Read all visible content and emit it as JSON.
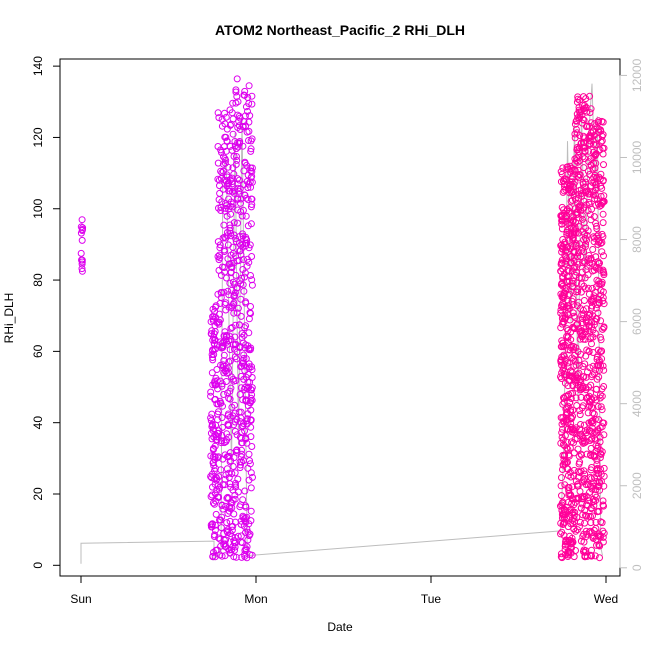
{
  "chart_data": {
    "type": "scatter",
    "title": "ATOM2 Northeast_Pacific_2 RHi_DLH",
    "xlabel": "Date",
    "ylabel": "RHi_DLH",
    "x_tick_labels": [
      "Sun",
      "Mon",
      "Tue",
      "Wed"
    ],
    "x_tick_days": [
      0,
      1,
      2,
      3
    ],
    "xlim_days": [
      -0.12,
      3.08
    ],
    "ylim": [
      -3,
      142
    ],
    "y_ticks": [
      0,
      20,
      40,
      60,
      80,
      100,
      120,
      140
    ],
    "y2_ticks": [
      0,
      2000,
      4000,
      6000,
      8000,
      10000,
      12000
    ],
    "y2lim": [
      -200,
      12400
    ],
    "grid": false,
    "colors": {
      "rhi_early": "#dd00ee",
      "rhi_late": "#ff0099",
      "altitude_line": "#bdbdbd",
      "axis": "#000000",
      "right_axis": "#bfbfbf"
    },
    "series": [
      {
        "style": "points",
        "color_key": "rhi_early",
        "clusters": [
          {
            "x_range_days": [
              0.0,
              0.01
            ],
            "y_range": [
              79,
              97
            ],
            "n": 14
          },
          {
            "x_range_days": [
              0.74,
              0.78
            ],
            "y_range": [
              2,
              73
            ],
            "n": 110
          },
          {
            "x_range_days": [
              0.78,
              0.86
            ],
            "y_range": [
              2,
              128
            ],
            "n": 260
          },
          {
            "x_range_days": [
              0.86,
              0.98
            ],
            "y_range": [
              2,
              137
            ],
            "n": 380
          }
        ]
      },
      {
        "style": "points",
        "color_key": "rhi_late",
        "clusters": [
          {
            "x_range_days": [
              2.74,
              2.82
            ],
            "y_range": [
              2,
              112
            ],
            "n": 420
          },
          {
            "x_range_days": [
              2.82,
              2.92
            ],
            "y_range": [
              2,
              132
            ],
            "n": 420
          },
          {
            "x_range_days": [
              2.92,
              2.99
            ],
            "y_range": [
              2,
              125
            ],
            "n": 280
          }
        ]
      },
      {
        "style": "line",
        "axis": "right",
        "color_key": "altitude_line",
        "points": [
          [
            0.0,
            100
          ],
          [
            0.0,
            600
          ],
          [
            0.76,
            650
          ],
          [
            0.76,
            200
          ],
          [
            0.8,
            400
          ],
          [
            0.81,
            9600
          ],
          [
            0.83,
            10000
          ],
          [
            0.86,
            2400
          ],
          [
            0.88,
            10600
          ],
          [
            0.9,
            3000
          ],
          [
            0.92,
            11000
          ],
          [
            0.95,
            400
          ],
          [
            0.96,
            300
          ],
          [
            2.74,
            900
          ],
          [
            2.76,
            3000
          ],
          [
            2.78,
            10400
          ],
          [
            2.8,
            6000
          ],
          [
            2.82,
            10800
          ],
          [
            2.84,
            4000
          ],
          [
            2.86,
            11200
          ],
          [
            2.88,
            7000
          ],
          [
            2.9,
            10500
          ],
          [
            2.92,
            11800
          ],
          [
            2.94,
            9000
          ],
          [
            2.95,
            11000
          ],
          [
            2.97,
            500
          ],
          [
            2.98,
            300
          ]
        ]
      }
    ]
  }
}
